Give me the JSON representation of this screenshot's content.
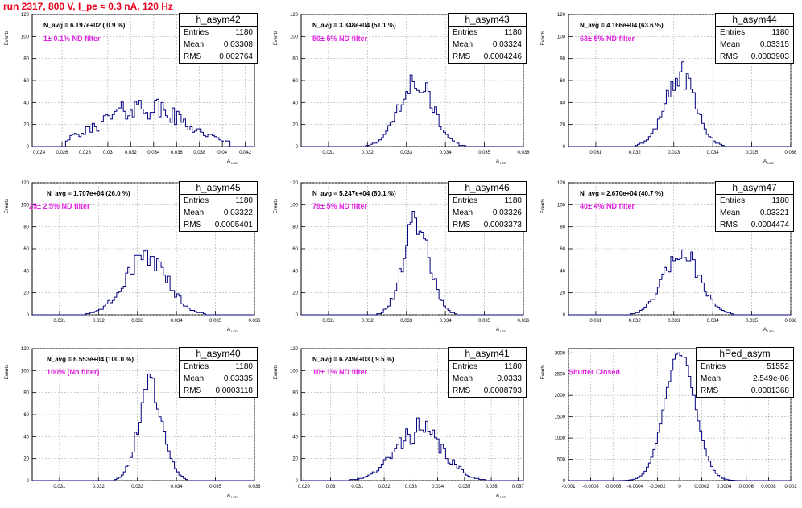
{
  "page_title": "run 2317,   800 V, I_pe ≈ 0.3 nA, 120 Hz",
  "chart_data": [
    {
      "type": "bar",
      "name": "h_asym42",
      "n_avg": "N_avg = 6.197e+02 ( 0.9 %)",
      "filter": "1± 0.1% ND filter",
      "stats": {
        "entries": "1180",
        "mean": "0.03308",
        "rms": "0.002764"
      },
      "xlabel": "A_LED",
      "ylabel": "Events",
      "xlim": [
        0.0234,
        0.0428
      ],
      "ylim": [
        0,
        120
      ],
      "xticks": [
        "0.024",
        "0.026",
        "0.028",
        "0.03",
        "0.032",
        "0.034",
        "0.036",
        "0.038",
        "0.04",
        "0.042"
      ],
      "yticks": [
        "0",
        "20",
        "40",
        "60",
        "80",
        "100",
        "120"
      ],
      "hist": {
        "mean": 0.03308,
        "sigma": 0.0036,
        "peak": 36,
        "bins": 100,
        "lo": 0.0234,
        "hi": 0.0428,
        "noise": 0.3,
        "seed": 42,
        "cut_lo": 0.0264,
        "cut_hi": 0.0406
      }
    },
    {
      "type": "bar",
      "name": "h_asym43",
      "n_avg": "N_avg = 3.348e+04 (51.1 %)",
      "filter": "50± 5% ND filter",
      "stats": {
        "entries": "1180",
        "mean": "0.03324",
        "rms": "0.0004246"
      },
      "xlabel": "A_LED",
      "ylabel": "Events",
      "xlim": [
        0.0303,
        0.036
      ],
      "ylim": [
        0,
        120
      ],
      "xticks": [
        "0.031",
        "0.032",
        "0.033",
        "0.034",
        "0.035",
        "0.036"
      ],
      "yticks": [
        "0",
        "20",
        "40",
        "60",
        "80",
        "100",
        "120"
      ],
      "hist": {
        "mean": 0.03324,
        "sigma": 0.000425,
        "peak": 62,
        "bins": 100,
        "lo": 0.0303,
        "hi": 0.036,
        "noise": 0.2,
        "seed": 43
      }
    },
    {
      "type": "bar",
      "name": "h_asym44",
      "n_avg": "N_avg = 4.166e+04 (63.6 %)",
      "filter": "63± 5% ND filter",
      "stats": {
        "entries": "1180",
        "mean": "0.03315",
        "rms": "0.0003903"
      },
      "xlabel": "A_LED",
      "ylabel": "Events",
      "xlim": [
        0.0303,
        0.036
      ],
      "ylim": [
        0,
        120
      ],
      "xticks": [
        "0.031",
        "0.032",
        "0.033",
        "0.034",
        "0.035",
        "0.036"
      ],
      "yticks": [
        "0",
        "20",
        "40",
        "60",
        "80",
        "100",
        "120"
      ],
      "hist": {
        "mean": 0.03315,
        "sigma": 0.00039,
        "peak": 66,
        "bins": 100,
        "lo": 0.0303,
        "hi": 0.036,
        "noise": 0.2,
        "seed": 44
      }
    },
    {
      "type": "bar",
      "name": "h_asym45",
      "n_avg": "N_avg = 1.707e+04 (26.0 %)",
      "filter": "25± 2.5% ND filter",
      "stats": {
        "entries": "1180",
        "mean": "0.03322",
        "rms": "0.0005401"
      },
      "xlabel": "A_LED",
      "ylabel": "Events",
      "xlim": [
        0.0303,
        0.036
      ],
      "ylim": [
        0,
        120
      ],
      "xticks": [
        "0.031",
        "0.032",
        "0.033",
        "0.034",
        "0.035",
        "0.036"
      ],
      "yticks": [
        "0",
        "20",
        "40",
        "60",
        "80",
        "100",
        "120"
      ],
      "hist": {
        "mean": 0.03322,
        "sigma": 0.00054,
        "peak": 52,
        "bins": 100,
        "lo": 0.0303,
        "hi": 0.036,
        "noise": 0.2,
        "seed": 45
      }
    },
    {
      "type": "bar",
      "name": "h_asym46",
      "n_avg": "N_avg = 5.247e+04 (80.1 %)",
      "filter": "79± 5% ND filter",
      "stats": {
        "entries": "1180",
        "mean": "0.03326",
        "rms": "0.0003373"
      },
      "xlabel": "A_LED",
      "ylabel": "Events",
      "xlim": [
        0.0303,
        0.036
      ],
      "ylim": [
        0,
        120
      ],
      "xticks": [
        "0.031",
        "0.032",
        "0.033",
        "0.034",
        "0.035",
        "0.036"
      ],
      "yticks": [
        "0",
        "20",
        "40",
        "60",
        "80",
        "100",
        "120"
      ],
      "hist": {
        "mean": 0.03326,
        "sigma": 0.000337,
        "peak": 82,
        "bins": 100,
        "lo": 0.0303,
        "hi": 0.036,
        "noise": 0.18,
        "seed": 46
      }
    },
    {
      "type": "bar",
      "name": "h_asym47",
      "n_avg": "N_avg = 2.670e+04 (40.7 %)",
      "filter": "40± 4% ND filter",
      "stats": {
        "entries": "1180",
        "mean": "0.03321",
        "rms": "0.0004474"
      },
      "xlabel": "A_LED",
      "ylabel": "Events",
      "xlim": [
        0.0303,
        0.036
      ],
      "ylim": [
        0,
        120
      ],
      "xticks": [
        "0.031",
        "0.032",
        "0.033",
        "0.034",
        "0.035",
        "0.036"
      ],
      "yticks": [
        "0",
        "20",
        "40",
        "60",
        "80",
        "100",
        "120"
      ],
      "hist": {
        "mean": 0.03321,
        "sigma": 0.000447,
        "peak": 58,
        "bins": 100,
        "lo": 0.0303,
        "hi": 0.036,
        "noise": 0.18,
        "seed": 47
      }
    },
    {
      "type": "bar",
      "name": "h_asym40",
      "n_avg": "N_avg = 6.553e+04 (100.0 %)",
      "filter": "100% (No filter)",
      "stats": {
        "entries": "1180",
        "mean": "0.03335",
        "rms": "0.0003118"
      },
      "xlabel": "A_LED",
      "ylabel": "Events",
      "xlim": [
        0.0303,
        0.036
      ],
      "ylim": [
        0,
        120
      ],
      "xticks": [
        "0.031",
        "0.032",
        "0.033",
        "0.034",
        "0.035",
        "0.036"
      ],
      "yticks": [
        "0",
        "20",
        "40",
        "60",
        "80",
        "100",
        "120"
      ],
      "hist": {
        "mean": 0.03335,
        "sigma": 0.00031,
        "peak": 88,
        "bins": 100,
        "lo": 0.0303,
        "hi": 0.036,
        "noise": 0.15,
        "seed": 40
      }
    },
    {
      "type": "bar",
      "name": "h_asym41",
      "n_avg": "N_avg = 6.249e+03 ( 9.5 %)",
      "filter": "10± 1% ND filter",
      "stats": {
        "entries": "1180",
        "mean": "0.0333",
        "rms": "0.0008793"
      },
      "xlabel": "A_LED",
      "ylabel": "Events",
      "xlim": [
        0.0289,
        0.0372
      ],
      "ylim": [
        0,
        120
      ],
      "xticks": [
        "0.029",
        "0.03",
        "0.031",
        "0.032",
        "0.033",
        "0.034",
        "0.035",
        "0.036",
        "0.037"
      ],
      "yticks": [
        "0",
        "20",
        "40",
        "60",
        "80",
        "100",
        "120"
      ],
      "hist": {
        "mean": 0.0333,
        "sigma": 0.00088,
        "peak": 46,
        "bins": 100,
        "lo": 0.0289,
        "hi": 0.0372,
        "noise": 0.25,
        "seed": 41
      }
    },
    {
      "type": "bar",
      "name": "hPed_asym",
      "n_avg": "",
      "filter": "Shutter Closed",
      "stats": {
        "entries": "51552",
        "mean": "2.549e-06",
        "rms": "0.0001368"
      },
      "xlabel": "",
      "ylabel": "Events",
      "xlim": [
        -0.001,
        0.001
      ],
      "ylim": [
        0,
        3100
      ],
      "xticks": [
        "-0.001",
        "-0.0008",
        "-0.0006",
        "-0.0004",
        "-0.0002",
        "0",
        "0.0002",
        "0.0004",
        "0.0006",
        "0.0008",
        "0.001"
      ],
      "yticks": [
        "0",
        "500",
        "1000",
        "1500",
        "2000",
        "2500",
        "3000"
      ],
      "hist": {
        "mean": 2.5e-06,
        "sigma": 0.000137,
        "peak": 3000,
        "bins": 100,
        "lo": -0.001,
        "hi": 0.001,
        "noise": 0.03,
        "seed": 99
      }
    }
  ],
  "colors": {
    "title": "#e8001c",
    "filter_text": "#e020e0",
    "hist_line": "#00007f",
    "grid": "#aaaaaa"
  }
}
